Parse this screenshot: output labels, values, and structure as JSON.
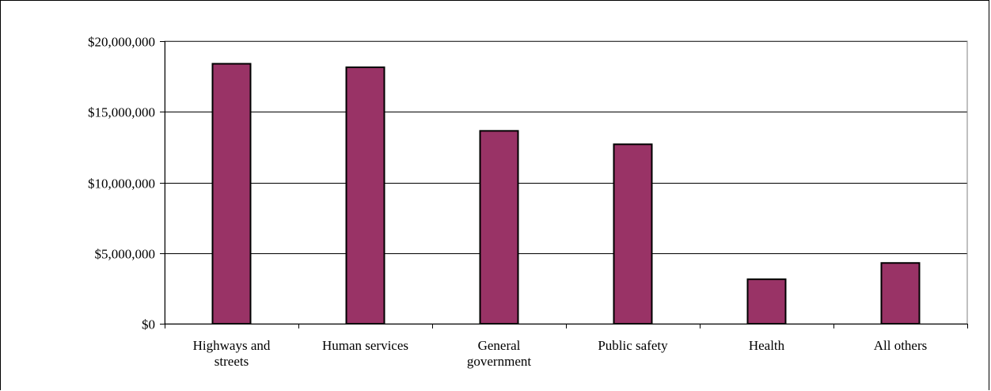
{
  "chart_data": {
    "type": "bar",
    "categories": [
      [
        "Highways and",
        "streets"
      ],
      [
        "Human services"
      ],
      [
        "General",
        "government"
      ],
      [
        "Public safety"
      ],
      [
        "Health"
      ],
      [
        "All others"
      ]
    ],
    "values": [
      18400000,
      18150000,
      13650000,
      12700000,
      3150000,
      4300000
    ],
    "ylim": [
      0,
      20000000
    ],
    "yticks": [
      0,
      5000000,
      10000000,
      15000000,
      20000000
    ],
    "ytick_labels": [
      "$0",
      "$5,000,000",
      "$10,000,000",
      "$15,000,000",
      "$20,000,000"
    ],
    "grid": true,
    "legend": "none",
    "colors": {
      "bar": "#993366",
      "bar_stroke": "#000000",
      "grid": "#000000",
      "plot_border": "#808080"
    }
  }
}
